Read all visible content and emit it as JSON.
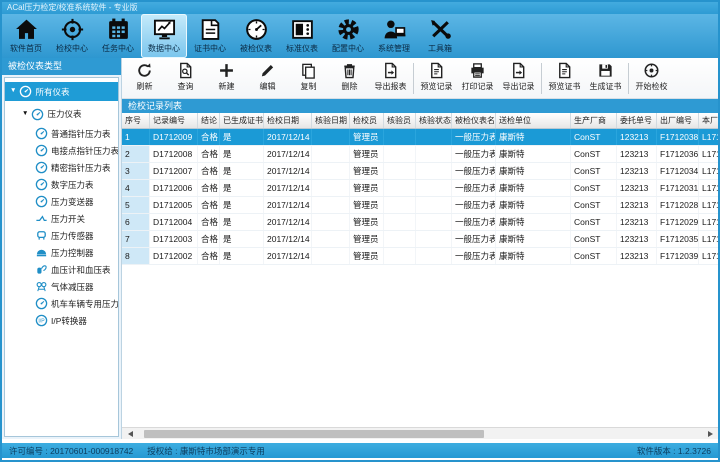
{
  "window": {
    "title": "ACal压力检定/校准系统软件 - 专业版"
  },
  "colors": {
    "window_border": "#2693cd",
    "ribbon_blue": "#2e97d0",
    "active_tab": "#9ad5f2",
    "panel_header_blue": "#2e9ad3",
    "selected_row_blue": "#1b9ad6",
    "seq_column_bg": "#cfe8f7",
    "status_text": "#0b3c5e"
  },
  "tabs": [
    {
      "key": "home",
      "label": "软件首页",
      "icon": "home-icon",
      "active": false
    },
    {
      "key": "verification-center",
      "label": "检校中心",
      "icon": "target-icon",
      "active": false
    },
    {
      "key": "task-center",
      "label": "任务中心",
      "icon": "calendar-icon",
      "active": false
    },
    {
      "key": "data-center",
      "label": "数据中心",
      "icon": "monitor-chart-icon",
      "active": true
    },
    {
      "key": "certificate-center",
      "label": "证书中心",
      "icon": "certificate-icon",
      "active": false
    },
    {
      "key": "tested-instruments",
      "label": "被检仪表",
      "icon": "gauge-icon",
      "active": false
    },
    {
      "key": "standard-instruments",
      "label": "标准仪表",
      "icon": "instrument-panel-icon",
      "active": false
    },
    {
      "key": "config-center",
      "label": "配置中心",
      "icon": "gear-icon",
      "active": false
    },
    {
      "key": "system-management",
      "label": "系统管理",
      "icon": "user-admin-icon",
      "active": false
    },
    {
      "key": "toolbox",
      "label": "工具箱",
      "icon": "tools-icon",
      "active": false
    }
  ],
  "sidebar": {
    "title": "被检仪表类型",
    "tree": [
      {
        "key": "all-instruments",
        "label": "所有仪表",
        "level": 0,
        "expandable": true,
        "selected": true,
        "icon": "type-gauge-icon"
      },
      {
        "key": "pressure-instruments",
        "label": "压力仪表",
        "level": 1,
        "expandable": true,
        "selected": false,
        "icon": "type-gauge-icon"
      },
      {
        "key": "ordinary-pointer-gauge",
        "label": "普通指针压力表",
        "level": 2,
        "expandable": false,
        "selected": false,
        "icon": "type-gauge-icon"
      },
      {
        "key": "electric-contact-pointer-gauge",
        "label": "电接点指针压力表",
        "level": 2,
        "expandable": false,
        "selected": false,
        "icon": "type-gauge-icon"
      },
      {
        "key": "precision-pointer-gauge",
        "label": "精密指针压力表",
        "level": 2,
        "expandable": false,
        "selected": false,
        "icon": "type-gauge-icon"
      },
      {
        "key": "digital-pressure-gauge",
        "label": "数字压力表",
        "level": 2,
        "expandable": false,
        "selected": false,
        "icon": "type-gauge-icon"
      },
      {
        "key": "pressure-transmitter",
        "label": "压力变送器",
        "level": 2,
        "expandable": false,
        "selected": false,
        "icon": "type-gauge-icon"
      },
      {
        "key": "pressure-switch",
        "label": "压力开关",
        "level": 2,
        "expandable": false,
        "selected": false,
        "icon": "type-switch-icon"
      },
      {
        "key": "pressure-sensor",
        "label": "压力传感器",
        "level": 2,
        "expandable": false,
        "selected": false,
        "icon": "type-sensor-icon"
      },
      {
        "key": "pressure-controller",
        "label": "压力控制器",
        "level": 2,
        "expandable": false,
        "selected": false,
        "icon": "type-controller-icon"
      },
      {
        "key": "sphygmomanometer",
        "label": "血压计和血压表",
        "level": 2,
        "expandable": false,
        "selected": false,
        "icon": "type-bp-icon"
      },
      {
        "key": "gas-pressure-regulator",
        "label": "气体减压器",
        "level": 2,
        "expandable": false,
        "selected": false,
        "icon": "type-regulator-icon"
      },
      {
        "key": "locomotive-pressure-gauge",
        "label": "机车车辆专用压力表",
        "level": 2,
        "expandable": false,
        "selected": false,
        "icon": "type-gauge-icon"
      },
      {
        "key": "ip-converter",
        "label": "I/P转换器",
        "level": 2,
        "expandable": false,
        "selected": false,
        "icon": "type-ip-icon"
      }
    ]
  },
  "toolbar": {
    "groups": [
      {
        "buttons": [
          {
            "key": "refresh",
            "label": "刷新",
            "icon": "refresh-icon"
          },
          {
            "key": "query",
            "label": "查询",
            "icon": "query-doc-icon"
          },
          {
            "key": "new",
            "label": "新建",
            "icon": "plus-icon"
          },
          {
            "key": "edit",
            "label": "编辑",
            "icon": "pencil-icon"
          },
          {
            "key": "copy",
            "label": "复制",
            "icon": "copy-icon"
          },
          {
            "key": "delete",
            "label": "删除",
            "icon": "trash-icon"
          },
          {
            "key": "export-report",
            "label": "导出报表",
            "icon": "export-doc-icon"
          }
        ]
      },
      {
        "buttons": [
          {
            "key": "preview-record",
            "label": "预览记录",
            "icon": "preview-doc-icon"
          },
          {
            "key": "print-record",
            "label": "打印记录",
            "icon": "printer-icon"
          },
          {
            "key": "export-record",
            "label": "导出记录",
            "icon": "export-doc-icon"
          }
        ]
      },
      {
        "buttons": [
          {
            "key": "preview-certificate",
            "label": "预览证书",
            "icon": "preview-doc-icon"
          },
          {
            "key": "generate-certificate",
            "label": "生成证书",
            "icon": "floppy-icon"
          }
        ]
      },
      {
        "buttons": [
          {
            "key": "start-verification",
            "label": "开始检校",
            "icon": "start-verify-icon"
          }
        ]
      }
    ]
  },
  "list_panel": {
    "title": "检校记录列表"
  },
  "table": {
    "columns": [
      "序号",
      "记录编号",
      "结论",
      "已生成证书",
      "检校日期",
      "核验日期",
      "检校员",
      "核验员",
      "核验状态",
      "被检仪表名称",
      "送检单位",
      "生产厂商",
      "委托单号",
      "出厂编号",
      "本厂编号"
    ],
    "rows": [
      {
        "selected": true,
        "cells": [
          "1",
          "D1712009",
          "合格",
          "是",
          "2017/12/14",
          "",
          "管理员",
          "",
          "",
          "一般压力表",
          "康斯特",
          "ConST",
          "123213",
          "F1712038",
          "L171"
        ]
      },
      {
        "selected": false,
        "cells": [
          "2",
          "D1712008",
          "合格",
          "是",
          "2017/12/14",
          "",
          "管理员",
          "",
          "",
          "一般压力表",
          "康斯特",
          "ConST",
          "123213",
          "F1712036",
          "L171"
        ]
      },
      {
        "selected": false,
        "cells": [
          "3",
          "D1712007",
          "合格",
          "是",
          "2017/12/14",
          "",
          "管理员",
          "",
          "",
          "一般压力表",
          "康斯特",
          "ConST",
          "123213",
          "F1712034",
          "L171"
        ]
      },
      {
        "selected": false,
        "cells": [
          "4",
          "D1712006",
          "合格",
          "是",
          "2017/12/14",
          "",
          "管理员",
          "",
          "",
          "一般压力表",
          "康斯特",
          "ConST",
          "123213",
          "F1712031",
          "L171"
        ]
      },
      {
        "selected": false,
        "cells": [
          "5",
          "D1712005",
          "合格",
          "是",
          "2017/12/14",
          "",
          "管理员",
          "",
          "",
          "一般压力表",
          "康斯特",
          "ConST",
          "123213",
          "F1712028",
          "L171"
        ]
      },
      {
        "selected": false,
        "cells": [
          "6",
          "D1712004",
          "合格",
          "是",
          "2017/12/14",
          "",
          "管理员",
          "",
          "",
          "一般压力表",
          "康斯特",
          "ConST",
          "123213",
          "F1712029",
          "L171"
        ]
      },
      {
        "selected": false,
        "cells": [
          "7",
          "D1712003",
          "合格",
          "是",
          "2017/12/14",
          "",
          "管理员",
          "",
          "",
          "一般压力表",
          "康斯特",
          "ConST",
          "123213",
          "F1712035",
          "L171"
        ]
      },
      {
        "selected": false,
        "cells": [
          "8",
          "D1712002",
          "合格",
          "是",
          "2017/12/14",
          "",
          "管理员",
          "",
          "",
          "一般压力表",
          "康斯特",
          "ConST",
          "123213",
          "F1712039",
          "L171"
        ]
      }
    ]
  },
  "statusbar": {
    "license": "许可编号 : 20170601-000918742",
    "authorized": "授权给 : 康斯特市场部演示专用",
    "version": "软件版本 : 1.2.3726"
  }
}
